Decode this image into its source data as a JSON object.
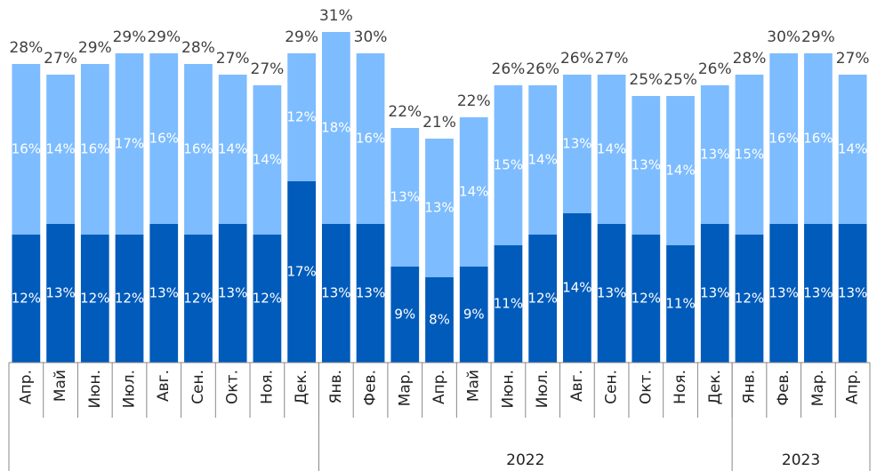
{
  "chart_data": {
    "type": "stacked-bar",
    "categories": [
      "Апр.",
      "Май",
      "Июн.",
      "Июл.",
      "Авг.",
      "Сен.",
      "Окт.",
      "Ноя.",
      "Дек.",
      "Янв.",
      "Фев.",
      "Мар.",
      "Апр.",
      "Май",
      "Июн.",
      "Июл.",
      "Авг.",
      "Сен.",
      "Окт.",
      "Ноя.",
      "Дек.",
      "Янв.",
      "Фев.",
      "Мар.",
      "Апр."
    ],
    "groups": [
      {
        "label": null,
        "size": 9
      },
      {
        "label": "2022",
        "size": 12
      },
      {
        "label": "2023",
        "size": 4
      }
    ],
    "series": [
      {
        "color": "#005bbb",
        "values": [
          12,
          13,
          12,
          12,
          13,
          12,
          13,
          12,
          17,
          13,
          13,
          9,
          8,
          9,
          11,
          12,
          14,
          13,
          12,
          11,
          13,
          12,
          13,
          13,
          13
        ],
        "value_labels": [
          "12%",
          "13%",
          "12%",
          "12%",
          "13%",
          "12%",
          "13%",
          "12%",
          "17%",
          "13%",
          "13%",
          "9%",
          "8%",
          "9%",
          "11%",
          "12%",
          "14%",
          "13%",
          "12%",
          "11%",
          "13%",
          "12%",
          "13%",
          "13%",
          "13%"
        ]
      },
      {
        "color": "#7dbcff",
        "values": [
          16,
          14,
          16,
          17,
          16,
          16,
          14,
          14,
          12,
          18,
          16,
          13,
          13,
          14,
          15,
          14,
          13,
          14,
          13,
          14,
          13,
          15,
          16,
          16,
          14
        ],
        "value_labels": [
          "16%",
          "14%",
          "16%",
          "17%",
          "16%",
          "16%",
          "14%",
          "14%",
          "12%",
          "18%",
          "16%",
          "13%",
          "13%",
          "14%",
          "15%",
          "14%",
          "13%",
          "14%",
          "13%",
          "14%",
          "13%",
          "15%",
          "16%",
          "16%",
          "14%"
        ]
      }
    ],
    "totals": [
      28,
      27,
      29,
      29,
      29,
      28,
      27,
      27,
      29,
      31,
      30,
      22,
      21,
      22,
      26,
      26,
      26,
      27,
      25,
      25,
      26,
      28,
      30,
      29,
      27
    ],
    "total_labels": [
      "28%",
      "27%",
      "29%",
      "29%",
      "29%",
      "28%",
      "27%",
      "27%",
      "29%",
      "31%",
      "30%",
      "22%",
      "21%",
      "22%",
      "26%",
      "26%",
      "26%",
      "27%",
      "25%",
      "25%",
      "26%",
      "28%",
      "30%",
      "29%",
      "27%"
    ]
  }
}
